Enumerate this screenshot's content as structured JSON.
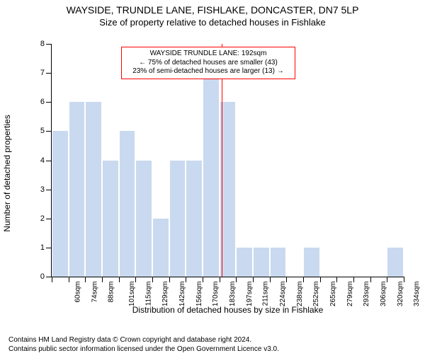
{
  "header": {
    "title1": "WAYSIDE, TRUNDLE LANE, FISHLAKE, DONCASTER, DN7 5LP",
    "title2": "Size of property relative to detached houses in Fishlake"
  },
  "chart": {
    "type": "bar",
    "ylim": [
      0,
      8
    ],
    "ytick_step": 1,
    "bar_color": "#c9d9ef",
    "background_color": "#ffffff",
    "bar_width_ratio": 0.92,
    "categories": [
      "60sqm",
      "74sqm",
      "88sqm",
      "101sqm",
      "115sqm",
      "129sqm",
      "142sqm",
      "156sqm",
      "170sqm",
      "183sqm",
      "197sqm",
      "211sqm",
      "224sqm",
      "238sqm",
      "252sqm",
      "265sqm",
      "279sqm",
      "293sqm",
      "306sqm",
      "320sqm",
      "334sqm"
    ],
    "values": [
      5,
      6,
      6,
      4,
      5,
      4,
      2,
      4,
      4,
      7,
      6,
      1,
      1,
      1,
      0,
      1,
      0,
      0,
      0,
      0,
      1
    ],
    "ylabel": "Number of detached properties",
    "xlabel": "Distribution of detached houses by size in Fishlake",
    "tick_fontsize": 11,
    "label_fontsize": 12,
    "marker": {
      "value_sqm": 192,
      "color": "#ff0000"
    },
    "annotation": {
      "border_color": "#ff0000",
      "line1": "WAYSIDE TRUNDLE LANE: 192sqm",
      "line2": "← 75% of detached houses are smaller (43)",
      "line3": "23% of semi-detached houses are larger (13) →"
    }
  },
  "footer": {
    "line1": "Contains HM Land Registry data © Crown copyright and database right 2024.",
    "line2": "Contains public sector information licensed under the Open Government Licence v3.0."
  }
}
